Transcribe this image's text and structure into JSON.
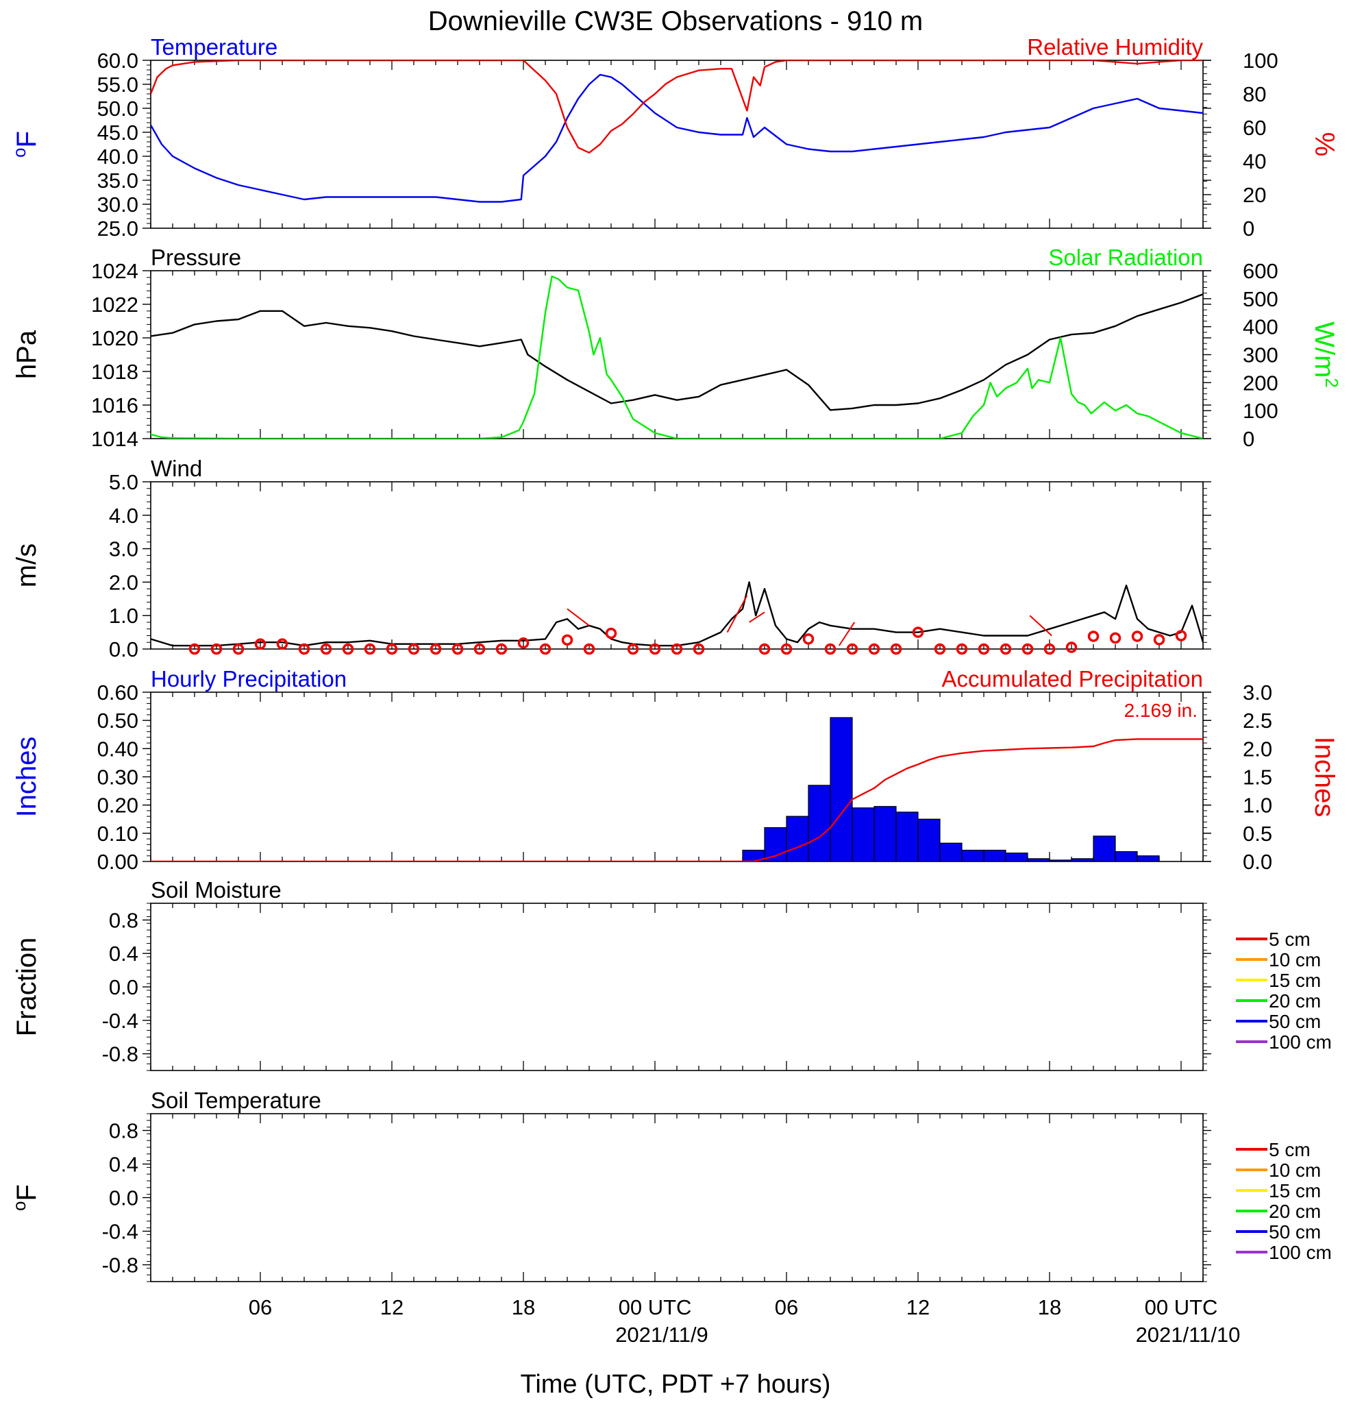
{
  "figure": {
    "title": "Downieville CW3E Observations - 910 m",
    "xlabel": "Time (UTC, PDT +7 hours)",
    "x_ticks": [
      {
        "hour": 6,
        "label": "06",
        "date": ""
      },
      {
        "hour": 12,
        "label": "12",
        "date": ""
      },
      {
        "hour": 18,
        "label": "18",
        "date": ""
      },
      {
        "hour": 24,
        "label": "00 UTC",
        "date": "2021/11/9"
      },
      {
        "hour": 30,
        "label": "06",
        "date": ""
      },
      {
        "hour": 36,
        "label": "12",
        "date": ""
      },
      {
        "hour": 42,
        "label": "18",
        "date": ""
      },
      {
        "hour": 48,
        "label": "00 UTC",
        "date": "2021/11/10"
      }
    ],
    "x_range_hours": [
      1,
      49
    ]
  },
  "chart_data": [
    {
      "id": "temperature-rh",
      "type": "line",
      "title_left": "Temperature",
      "title_right": "Relative Humidity",
      "ylabel_left": "oF",
      "ylabel_right": "%",
      "ylim_left": [
        25,
        60
      ],
      "yticks_left": [
        "60.0",
        "55.0",
        "50.0",
        "45.0",
        "40.0",
        "35.0",
        "30.0",
        "25.0"
      ],
      "ylim_right": [
        0,
        100
      ],
      "yticks_right": [
        "100",
        "80",
        "60",
        "40",
        "20",
        "0"
      ],
      "series": [
        {
          "name": "Temperature",
          "axis": "left",
          "color": "#0000ee",
          "x": [
            1,
            1.5,
            2,
            3,
            4,
            5,
            6,
            7,
            8,
            9,
            10,
            11,
            12,
            13,
            14,
            15,
            16,
            17,
            17.9,
            18,
            18.5,
            19,
            19.5,
            20,
            20.5,
            21,
            21.5,
            22,
            22.5,
            23,
            23.5,
            24,
            25,
            26,
            27,
            28,
            28.2,
            28.5,
            29,
            30,
            31,
            32,
            33,
            34,
            35,
            36,
            37,
            38,
            39,
            40,
            41,
            42,
            43,
            44,
            45,
            46,
            47,
            48,
            49
          ],
          "values": [
            46.5,
            42.5,
            40,
            37.5,
            35.5,
            34,
            33,
            32,
            31,
            31.5,
            31.5,
            31.5,
            31.5,
            31.5,
            31.5,
            31,
            30.5,
            30.5,
            31,
            36,
            38,
            40,
            43,
            48,
            52,
            55,
            57,
            56.5,
            55,
            53,
            51,
            49,
            46,
            45,
            44.5,
            44.5,
            48,
            44,
            46,
            42.5,
            41.5,
            41,
            41,
            41.5,
            42,
            42.5,
            43,
            43.5,
            44,
            45,
            45.5,
            46,
            48,
            50,
            51,
            52,
            50,
            49.5,
            49
          ]
        },
        {
          "name": "Relative Humidity",
          "axis": "right",
          "color": "#ee0000",
          "x": [
            1,
            1.3,
            1.7,
            2,
            3,
            5,
            10,
            17,
            18,
            18.5,
            19,
            19.5,
            20,
            20.5,
            21,
            21.5,
            22,
            22.5,
            23,
            23.5,
            24,
            24.5,
            25,
            26,
            27,
            27.5,
            28.2,
            28.5,
            28.8,
            29,
            29.5,
            30,
            35,
            40,
            42,
            43,
            44,
            45,
            46,
            47,
            48,
            49
          ],
          "values": [
            80,
            90,
            95,
            97,
            99,
            100,
            100,
            100,
            100,
            94,
            88,
            80,
            60,
            48,
            45,
            50,
            58,
            62,
            68,
            75,
            80,
            86,
            90,
            94,
            95,
            95,
            70,
            90,
            85,
            96,
            99,
            100,
            100,
            100,
            100,
            100,
            100,
            99,
            98,
            99,
            100,
            100
          ]
        }
      ]
    },
    {
      "id": "pressure-solar",
      "type": "line",
      "title_left": "Pressure",
      "title_right": "Solar Radiation",
      "ylabel_left": "hPa",
      "ylabel_right": "W/m2",
      "ylim_left": [
        1014,
        1024
      ],
      "yticks_left": [
        "1024",
        "1022",
        "1020",
        "1018",
        "1016",
        "1014"
      ],
      "ylim_right": [
        0,
        600
      ],
      "yticks_right": [
        "600",
        "500",
        "400",
        "300",
        "200",
        "100",
        "0"
      ],
      "series": [
        {
          "name": "Pressure",
          "axis": "left",
          "color": "#000000",
          "x": [
            1,
            2,
            3,
            4,
            5,
            6,
            7,
            8,
            9,
            10,
            11,
            12,
            13,
            14,
            15,
            16,
            17,
            17.9,
            18.2,
            19,
            20,
            21,
            22,
            23,
            24,
            25,
            26,
            27,
            28,
            29,
            30,
            31,
            32,
            33,
            34,
            35,
            36,
            37,
            38,
            39,
            40,
            41,
            42,
            43,
            44,
            45,
            46,
            47,
            48,
            49
          ],
          "values": [
            1020.1,
            1020.3,
            1020.8,
            1021.0,
            1021.1,
            1021.6,
            1021.6,
            1020.7,
            1020.9,
            1020.7,
            1020.6,
            1020.4,
            1020.1,
            1019.9,
            1019.7,
            1019.5,
            1019.7,
            1019.9,
            1019.0,
            1018.3,
            1017.5,
            1016.8,
            1016.1,
            1016.3,
            1016.6,
            1016.3,
            1016.5,
            1017.2,
            1017.5,
            1017.8,
            1018.1,
            1017.2,
            1015.7,
            1015.8,
            1016.0,
            1016.0,
            1016.1,
            1016.4,
            1016.9,
            1017.5,
            1018.4,
            1019.0,
            1019.9,
            1020.2,
            1020.3,
            1020.7,
            1021.3,
            1021.7,
            1022.1,
            1022.6
          ]
        },
        {
          "name": "Solar Radiation",
          "axis": "right",
          "color": "#00ee00",
          "x": [
            1,
            1.5,
            2,
            5,
            10,
            15,
            16,
            17,
            17.8,
            18,
            18.5,
            19,
            19.3,
            19.6,
            20,
            20.5,
            21,
            21.2,
            21.5,
            21.8,
            22,
            22.5,
            23,
            24,
            25,
            30,
            35,
            37,
            38,
            38.5,
            39,
            39.3,
            39.6,
            40,
            40.5,
            41,
            41.2,
            41.5,
            42,
            42.5,
            43,
            43.3,
            43.6,
            43.9,
            44.2,
            44.5,
            45,
            45.5,
            46,
            46.5,
            47,
            47.5,
            48,
            48.5,
            49
          ],
          "values": [
            15,
            5,
            2,
            0,
            0,
            0,
            0,
            5,
            30,
            60,
            160,
            450,
            580,
            570,
            540,
            530,
            380,
            300,
            360,
            230,
            210,
            150,
            70,
            20,
            0,
            0,
            0,
            0,
            20,
            80,
            120,
            200,
            150,
            180,
            200,
            250,
            180,
            210,
            200,
            360,
            160,
            130,
            120,
            90,
            110,
            130,
            100,
            120,
            90,
            80,
            60,
            40,
            20,
            10,
            0
          ]
        }
      ]
    },
    {
      "id": "wind",
      "type": "line",
      "title_left": "Wind",
      "ylabel_left": "m/s",
      "ylim_left": [
        0,
        5
      ],
      "yticks_left": [
        "5.0",
        "4.0",
        "3.0",
        "2.0",
        "1.0",
        "0.0"
      ],
      "series": [
        {
          "name": "Wind",
          "axis": "left",
          "color": "#000000",
          "x": [
            1,
            2,
            3,
            4,
            5,
            6,
            7,
            8,
            9,
            10,
            11,
            12,
            13,
            14,
            15,
            16,
            17,
            18,
            19,
            19.5,
            20,
            20.5,
            21,
            21.5,
            22,
            22.5,
            23,
            24,
            25,
            26,
            27,
            27.5,
            28,
            28.3,
            28.6,
            29,
            29.5,
            30,
            30.5,
            31,
            31.5,
            32,
            33,
            34,
            35,
            36,
            37,
            38,
            39,
            40,
            41,
            42,
            43,
            44,
            44.5,
            45,
            45.5,
            46,
            46.5,
            47,
            47.5,
            48,
            48.5,
            49
          ],
          "values": [
            0.3,
            0.1,
            0.1,
            0.1,
            0.15,
            0.2,
            0.2,
            0.1,
            0.2,
            0.2,
            0.25,
            0.15,
            0.15,
            0.15,
            0.15,
            0.2,
            0.25,
            0.25,
            0.3,
            0.8,
            0.9,
            0.6,
            0.7,
            0.6,
            0.3,
            0.2,
            0.15,
            0.1,
            0.1,
            0.2,
            0.5,
            0.9,
            1.2,
            2.0,
            1.0,
            1.8,
            0.7,
            0.3,
            0.2,
            0.6,
            0.8,
            0.7,
            0.6,
            0.6,
            0.5,
            0.5,
            0.6,
            0.5,
            0.4,
            0.4,
            0.4,
            0.6,
            0.8,
            1.0,
            1.1,
            0.9,
            1.9,
            0.9,
            0.6,
            0.5,
            0.4,
            0.5,
            1.3,
            0.2
          ]
        }
      ],
      "hourly_markers": {
        "color": "#ee0000",
        "x": [
          3,
          4,
          5,
          6,
          7,
          8,
          9,
          10,
          11,
          12,
          13,
          14,
          15,
          16,
          17,
          18,
          19,
          20,
          21,
          22,
          23,
          24,
          25,
          26,
          29,
          30,
          31,
          32,
          33,
          34,
          35,
          36,
          37,
          38,
          39,
          40,
          41,
          42,
          43,
          44,
          45,
          46,
          47,
          48
        ],
        "values": [
          0.0,
          0.0,
          0.0,
          0.15,
          0.15,
          0.0,
          0.0,
          0.0,
          0.0,
          0.0,
          0.0,
          0.0,
          0.0,
          0.0,
          0.0,
          0.18,
          0.0,
          0.27,
          0.0,
          0.47,
          0.0,
          0.0,
          0.0,
          0.0,
          0.0,
          0.0,
          0.3,
          0.0,
          0.0,
          0.0,
          0.0,
          0.5,
          0.0,
          0.0,
          0.0,
          0.0,
          0.0,
          0.0,
          0.05,
          0.38,
          0.33,
          0.38,
          0.28,
          0.4
        ]
      },
      "wind_barbs": [
        {
          "x1": 20,
          "y1": 1.2,
          "x2": 21,
          "y2": 0.7
        },
        {
          "x1": 27.3,
          "y1": 0.5,
          "x2": 28.2,
          "y2": 1.6
        },
        {
          "x1": 28.3,
          "y1": 0.8,
          "x2": 29,
          "y2": 1.1
        },
        {
          "x1": 32.4,
          "y1": 0.1,
          "x2": 33.1,
          "y2": 0.8
        },
        {
          "x1": 41.1,
          "y1": 1.0,
          "x2": 42.1,
          "y2": 0.4
        }
      ]
    },
    {
      "id": "precipitation",
      "type": "bar",
      "title_left": "Hourly Precipitation",
      "title_right": "Accumulated Precipitation",
      "ylabel_left": "Inches",
      "ylabel_right": "Inches",
      "ylim_left": [
        0,
        0.6
      ],
      "yticks_left": [
        "0.60",
        "0.50",
        "0.40",
        "0.30",
        "0.20",
        "0.10",
        "0.00"
      ],
      "ylim_right": [
        0,
        3
      ],
      "yticks_right": [
        "3.0",
        "2.5",
        "2.0",
        "1.5",
        "1.0",
        "0.5",
        "0.0"
      ],
      "annotation": "2.169 in.",
      "hourly": {
        "name": "Hourly Precipitation",
        "color": "#0000ee",
        "hour_start": [
          28,
          29,
          30,
          31,
          32,
          33,
          34,
          35,
          36,
          37,
          38,
          39,
          40,
          41,
          42,
          43,
          44,
          45,
          46
        ],
        "values": [
          0.04,
          0.12,
          0.16,
          0.27,
          0.51,
          0.19,
          0.195,
          0.175,
          0.15,
          0.065,
          0.04,
          0.04,
          0.03,
          0.01,
          0.005,
          0.01,
          0.09,
          0.035,
          0.02
        ]
      },
      "accumulated": {
        "name": "Accumulated Precipitation",
        "color": "#ee0000",
        "x": [
          1,
          28.5,
          29,
          29.5,
          30,
          30.5,
          31,
          31.5,
          32,
          32.5,
          33,
          33.5,
          34,
          34.5,
          35,
          35.5,
          36,
          36.5,
          37,
          38,
          39,
          40,
          41,
          42,
          43,
          44,
          44.5,
          45,
          46,
          47,
          48,
          49
        ],
        "values": [
          0.0,
          0.0,
          0.05,
          0.1,
          0.18,
          0.25,
          0.33,
          0.43,
          0.6,
          0.85,
          1.1,
          1.2,
          1.3,
          1.45,
          1.55,
          1.65,
          1.72,
          1.8,
          1.86,
          1.92,
          1.96,
          1.98,
          2.0,
          2.01,
          2.02,
          2.04,
          2.1,
          2.15,
          2.169,
          2.169,
          2.169,
          2.169
        ]
      }
    },
    {
      "id": "soil-moisture",
      "type": "line",
      "title_left": "Soil Moisture",
      "ylabel_left": "Fraction",
      "ylim_left": [
        -1,
        1
      ],
      "yticks_left": [
        "0.8",
        "0.4",
        "0.0",
        "-0.4",
        "-0.8"
      ],
      "legend": [
        {
          "label": "5 cm",
          "color": "#ee0000"
        },
        {
          "label": "10 cm",
          "color": "#ff9900"
        },
        {
          "label": "15 cm",
          "color": "#ffee00"
        },
        {
          "label": "20 cm",
          "color": "#00ee00"
        },
        {
          "label": "50 cm",
          "color": "#0000ee"
        },
        {
          "label": "100 cm",
          "color": "#9933cc"
        }
      ],
      "series": []
    },
    {
      "id": "soil-temperature",
      "type": "line",
      "title_left": "Soil Temperature",
      "ylabel_left": "oF",
      "ylim_left": [
        -1,
        1
      ],
      "yticks_left": [
        "0.8",
        "0.4",
        "0.0",
        "-0.4",
        "-0.8"
      ],
      "legend": [
        {
          "label": "5 cm",
          "color": "#ee0000"
        },
        {
          "label": "10 cm",
          "color": "#ff9900"
        },
        {
          "label": "15 cm",
          "color": "#ffee00"
        },
        {
          "label": "20 cm",
          "color": "#00ee00"
        },
        {
          "label": "50 cm",
          "color": "#0000ee"
        },
        {
          "label": "100 cm",
          "color": "#9933cc"
        }
      ],
      "series": []
    }
  ]
}
